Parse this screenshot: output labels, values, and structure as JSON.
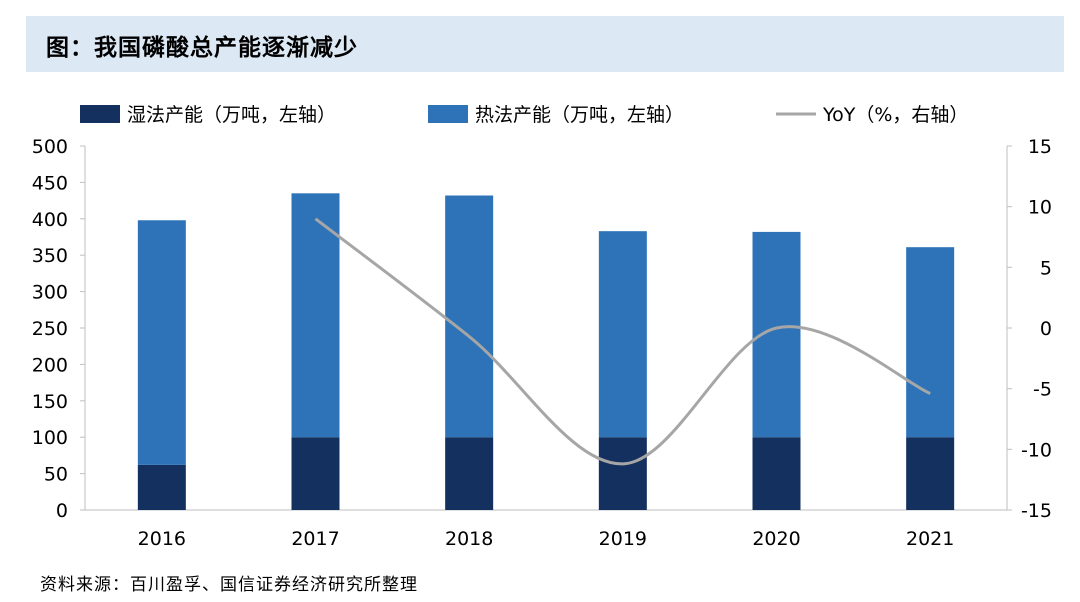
{
  "title": "图：我国磷酸总产能逐渐减少",
  "source": "资料来源：百川盈孚、国信证券经济研究所整理",
  "colors": {
    "wet": "#14305e",
    "thermal": "#2e73b8",
    "yoy": "#a6a6a6",
    "title_bg": "#dce8f4"
  },
  "chart_data": {
    "type": "bar",
    "stacked": true,
    "categories": [
      "2016",
      "2017",
      "2018",
      "2019",
      "2020",
      "2021"
    ],
    "series": [
      {
        "name": "湿法产能（万吨，左轴）",
        "axis": "left",
        "type": "bar",
        "values": [
          62,
          100,
          100,
          100,
          100,
          100
        ]
      },
      {
        "name": "热法产能（万吨，左轴）",
        "axis": "left",
        "type": "bar",
        "values": [
          336,
          335,
          332,
          283,
          282,
          261
        ]
      },
      {
        "name": "YoY（%，右轴）",
        "axis": "right",
        "type": "line",
        "smooth": true,
        "values": [
          null,
          9,
          -0.7,
          -11.2,
          0,
          -5.4
        ]
      }
    ],
    "y_left": {
      "min": 0,
      "max": 500,
      "step": 50,
      "ticks": [
        "0",
        "50",
        "100",
        "150",
        "200",
        "250",
        "300",
        "350",
        "400",
        "450",
        "500"
      ]
    },
    "y_right": {
      "min": -15,
      "max": 15,
      "step": 5,
      "ticks": [
        "-15",
        "-10",
        "-5",
        "0",
        "5",
        "10",
        "15"
      ]
    },
    "legend_position": "top",
    "grid": false
  }
}
